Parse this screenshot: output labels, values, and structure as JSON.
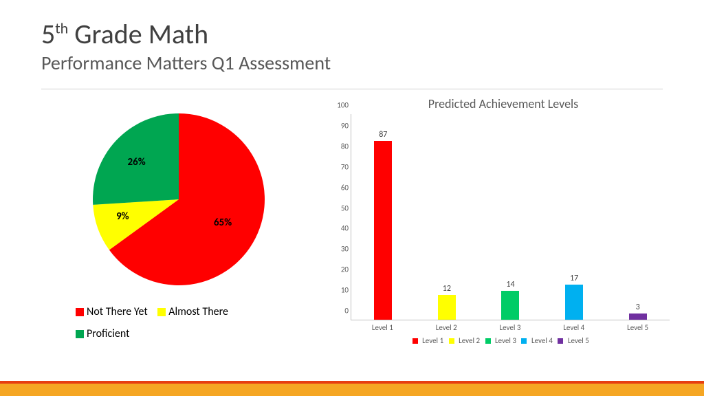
{
  "header": {
    "title_pre": "5",
    "title_sup": "th",
    "title_post": " Grade Math",
    "subtitle": "Performance Matters Q1 Assessment"
  },
  "colors": {
    "red": "#ff0000",
    "yellow": "#ffff00",
    "green": "#00a651",
    "cyan": "#00b0f0",
    "purple": "#7030a0",
    "footer_orange": "#f5a623",
    "footer_red": "#e63e11",
    "text_dark": "#404040",
    "text_mid": "#595959"
  },
  "pie": {
    "type": "pie",
    "slices": [
      {
        "label": "Not There Yet",
        "value": 65,
        "display": "65%",
        "color": "#ff0000"
      },
      {
        "label": "Almost There",
        "value": 9,
        "display": "9%",
        "color": "#ffff00"
      },
      {
        "label": "Proficient",
        "value": 26,
        "display": "26%",
        "color": "#00a651"
      }
    ],
    "legend_line1_a": "Not There Yet",
    "legend_line1_b": "Almost There",
    "legend_line2": "Proficient"
  },
  "bar": {
    "type": "bar",
    "title": "Predicted Achievement Levels",
    "ylim": [
      0,
      100
    ],
    "ytick_step": 10,
    "categories": [
      "Level 1",
      "Level 2",
      "Level 3",
      "Level 4",
      "Level 5"
    ],
    "values": [
      87,
      12,
      14,
      17,
      3
    ],
    "bar_colors": [
      "#ff0000",
      "#ffff00",
      "#00cc66",
      "#00b0f0",
      "#7030a0"
    ],
    "legend_items": [
      {
        "label": "Level 1",
        "color": "#ff0000"
      },
      {
        "label": "Level 2",
        "color": "#ffff00"
      },
      {
        "label": "Level 3",
        "color": "#00cc66"
      },
      {
        "label": "Level 4",
        "color": "#00b0f0"
      },
      {
        "label": "Level 5",
        "color": "#7030a0"
      }
    ]
  }
}
